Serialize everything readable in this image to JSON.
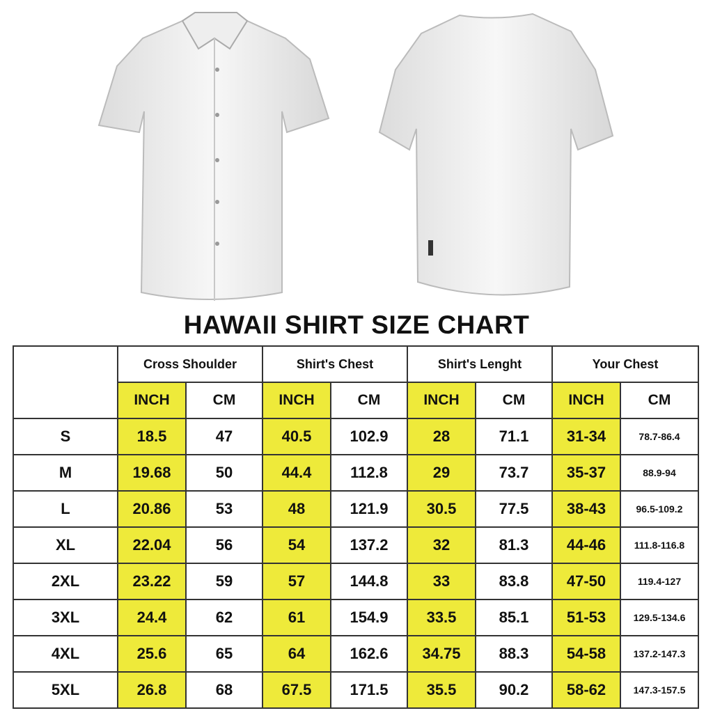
{
  "title": "HAWAII SHIRT SIZE CHART",
  "colors": {
    "inch_highlight": "#eeea3a",
    "border": "#333333",
    "shirt": "#f4f4f4"
  },
  "images": {
    "front": "white-shirt-front",
    "back": "white-shirt-back"
  },
  "groups": [
    "Cross Shoulder",
    "Shirt's Chest",
    "Shirt's Lenght",
    "Your Chest"
  ],
  "units": [
    "INCH",
    "CM"
  ],
  "rows": [
    {
      "size": "S",
      "values": [
        "18.5",
        "47",
        "40.5",
        "102.9",
        "28",
        "71.1",
        "31-34",
        "78.7-86.4"
      ]
    },
    {
      "size": "M",
      "values": [
        "19.68",
        "50",
        "44.4",
        "112.8",
        "29",
        "73.7",
        "35-37",
        "88.9-94"
      ]
    },
    {
      "size": "L",
      "values": [
        "20.86",
        "53",
        "48",
        "121.9",
        "30.5",
        "77.5",
        "38-43",
        "96.5-109.2"
      ]
    },
    {
      "size": "XL",
      "values": [
        "22.04",
        "56",
        "54",
        "137.2",
        "32",
        "81.3",
        "44-46",
        "111.8-116.8"
      ]
    },
    {
      "size": "2XL",
      "values": [
        "23.22",
        "59",
        "57",
        "144.8",
        "33",
        "83.8",
        "47-50",
        "119.4-127"
      ]
    },
    {
      "size": "3XL",
      "values": [
        "24.4",
        "62",
        "61",
        "154.9",
        "33.5",
        "85.1",
        "51-53",
        "129.5-134.6"
      ]
    },
    {
      "size": "4XL",
      "values": [
        "25.6",
        "65",
        "64",
        "162.6",
        "34.75",
        "88.3",
        "54-58",
        "137.2-147.3"
      ]
    },
    {
      "size": "5XL",
      "values": [
        "26.8",
        "68",
        "67.5",
        "171.5",
        "35.5",
        "90.2",
        "58-62",
        "147.3-157.5"
      ]
    }
  ]
}
